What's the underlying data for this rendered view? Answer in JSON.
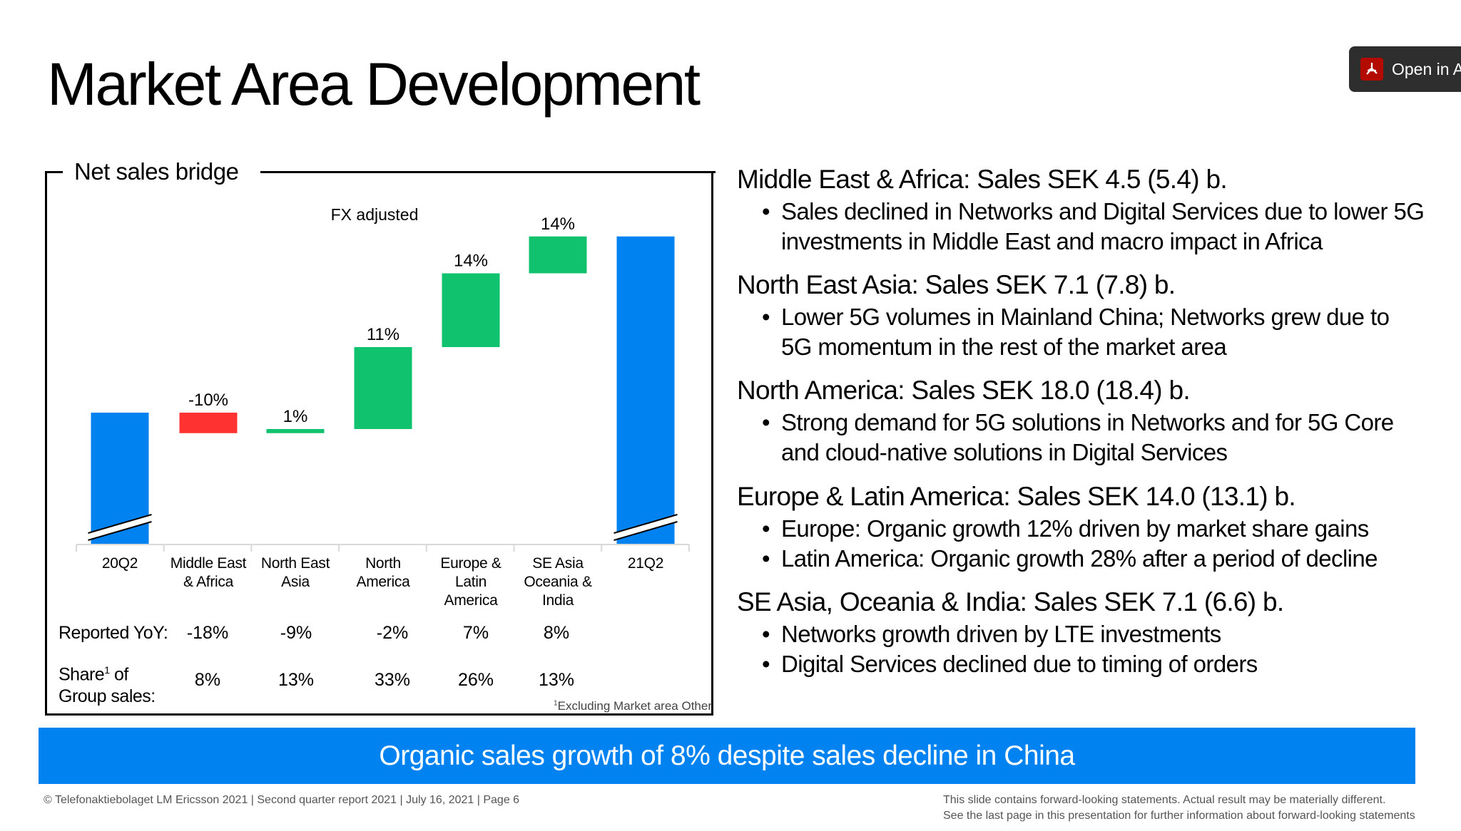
{
  "slide": {
    "title": "Market Area Development",
    "open_button": {
      "label": "Open in A",
      "icon": "acrobat-pdf-icon"
    }
  },
  "chart_data": {
    "type": "waterfall",
    "title": "Net sales bridge",
    "subtitle": "FX adjusted",
    "categories": [
      "20Q2",
      "Middle East & Africa",
      "North East Asia",
      "North America",
      "Europe & Latin America",
      "SE Asia Oceania & India",
      "21Q2"
    ],
    "category_lines": [
      [
        "20Q2"
      ],
      [
        "Middle East",
        "& Africa"
      ],
      [
        "North East",
        "Asia"
      ],
      [
        "North",
        "America"
      ],
      [
        "Europe &",
        "Latin",
        "America"
      ],
      [
        "SE Asia",
        "Oceania &",
        "India"
      ],
      [
        "21Q2"
      ]
    ],
    "data_labels": [
      "",
      "-10%",
      "1%",
      "11%",
      "14%",
      "14%",
      ""
    ],
    "values_sek_b": [
      null,
      -0.5,
      0.1,
      2.0,
      1.8,
      0.9,
      null
    ],
    "kinds": [
      "total",
      "delta",
      "delta",
      "delta",
      "delta",
      "delta",
      "total"
    ],
    "y_axis_break": true,
    "grid": false,
    "colors": {
      "total": "#0082f0",
      "increase": "#10c26e",
      "decrease": "#ff3232"
    },
    "table": {
      "reported_label": "Reported YoY:",
      "reported": [
        "",
        "-18%",
        "-9%",
        "-2%",
        "7%",
        "8%",
        ""
      ],
      "share_label_1": "Share",
      "share_sup": "1",
      "share_label_2": " of",
      "share_label_3": "Group sales:",
      "share": [
        "",
        "8%",
        "13%",
        "33%",
        "26%",
        "13%",
        ""
      ]
    },
    "footnote_sup": "1",
    "footnote": "Excluding Market area Other"
  },
  "sections": [
    {
      "heading": "Middle East & Africa: Sales SEK 4.5 (5.4) b.",
      "bullets": [
        [
          "Sales declined in Networks and Digital Services due to lower 5G",
          "investments in Middle East and macro impact in Africa"
        ]
      ]
    },
    {
      "heading": "North East Asia: Sales SEK 7.1 (7.8) b.",
      "bullets": [
        [
          "Lower 5G volumes in Mainland China; Networks grew due to",
          "5G momentum in the rest of the market area"
        ]
      ]
    },
    {
      "heading": "North America: Sales SEK 18.0 (18.4) b.",
      "bullets": [
        [
          "Strong demand for 5G solutions in Networks and for 5G Core",
          "and cloud-native solutions in Digital Services"
        ]
      ]
    },
    {
      "heading": "Europe & Latin America: Sales SEK 14.0 (13.1) b.",
      "bullets": [
        [
          "Europe: Organic growth 12% driven by market share gains"
        ],
        [
          "Latin America: Organic growth 28% after a period of decline"
        ]
      ]
    },
    {
      "heading": "SE Asia, Oceania & India: Sales SEK 7.1 (6.6) b.",
      "bullets": [
        [
          "Networks growth driven by LTE investments"
        ],
        [
          "Digital Services declined due to timing of orders"
        ]
      ]
    }
  ],
  "banner": "Organic sales growth of 8% despite sales decline in China",
  "footer": {
    "left": "© Telefonaktiebolaget LM Ericsson 2021  | Second quarter report 2021 | July 16, 2021  |  Page 6",
    "right_1": "This slide contains forward-looking statements. Actual result may be materially different.",
    "right_2": "See the last page in this presentation for further information about forward-looking statements"
  }
}
